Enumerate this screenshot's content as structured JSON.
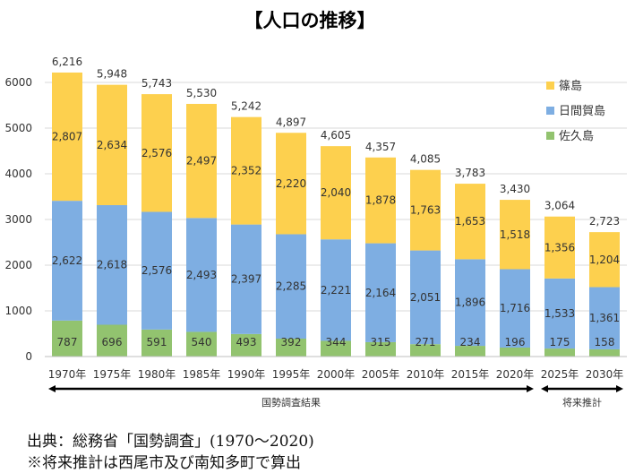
{
  "chart_data": {
    "type": "bar",
    "stacked": true,
    "title": "【人口の推移】",
    "categories": [
      "1970年",
      "1975年",
      "1980年",
      "1985年",
      "1990年",
      "1995年",
      "2000年",
      "2005年",
      "2010年",
      "2015年",
      "2020年",
      "2025年",
      "2030年"
    ],
    "series": [
      {
        "name": "佐久島",
        "color": "#92c36f",
        "values": [
          787,
          696,
          591,
          540,
          493,
          392,
          344,
          315,
          271,
          234,
          196,
          175,
          158
        ]
      },
      {
        "name": "日間賀島",
        "color": "#7eaee2",
        "values": [
          2622,
          2618,
          2576,
          2493,
          2397,
          2285,
          2221,
          2164,
          2051,
          1896,
          1716,
          1533,
          1361
        ]
      },
      {
        "name": "篠島",
        "color": "#fdd04e",
        "values": [
          2807,
          2634,
          2576,
          2497,
          2352,
          2220,
          2040,
          1878,
          1763,
          1653,
          1518,
          1356,
          1204
        ]
      }
    ],
    "totals": [
      6216,
      5948,
      5743,
      5530,
      5242,
      4897,
      4605,
      4357,
      4085,
      3783,
      3430,
      3064,
      2723
    ],
    "ylim": [
      0,
      6000
    ],
    "yticks": [
      "0",
      "1000",
      "2000",
      "3000",
      "4000",
      "5000",
      "6000"
    ],
    "grid": true,
    "legend_position": "top-right",
    "annotations": [
      {
        "label": "国勢調査結果",
        "from": "1970年",
        "to": "2020年"
      },
      {
        "label": "将来推計",
        "from": "2025年",
        "to": "2030年"
      }
    ]
  },
  "source": {
    "line1": "出典：総務省「国勢調査」(1970～2020)",
    "line2": "※将来推計は西尾市及び南知多町で算出"
  }
}
